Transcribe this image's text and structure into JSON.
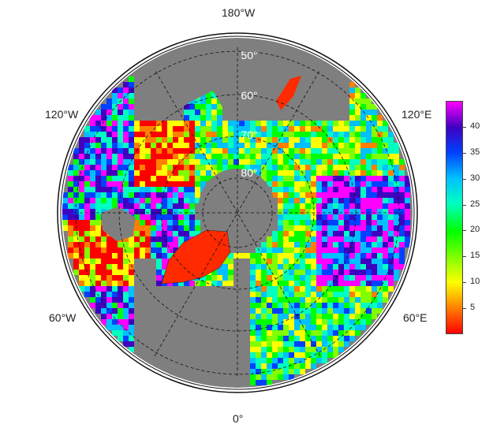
{
  "map": {
    "projection": "north-polar-stereographic",
    "ocean_color": "#7f7f7f",
    "lon_labels": {
      "top": "180°W",
      "bottom": "0°",
      "upper_left": "120°W",
      "upper_right": "120°E",
      "lower_left": "60°W",
      "lower_right": "60°E"
    },
    "lat_labels": [
      "50°",
      "60°",
      "70°",
      "80°"
    ]
  },
  "colorbar": {
    "min": 0,
    "max": 45,
    "ticks": [
      "5",
      "10",
      "15",
      "20",
      "25",
      "30",
      "35",
      "40"
    ],
    "tick_values": [
      5,
      10,
      15,
      20,
      25,
      30,
      35,
      40
    ],
    "colors": [
      "#ff0000",
      "#ff8000",
      "#ffff00",
      "#80ff00",
      "#00ff00",
      "#00ffc0",
      "#00c0ff",
      "#0040ff",
      "#4000c0",
      "#ff00ff"
    ]
  }
}
